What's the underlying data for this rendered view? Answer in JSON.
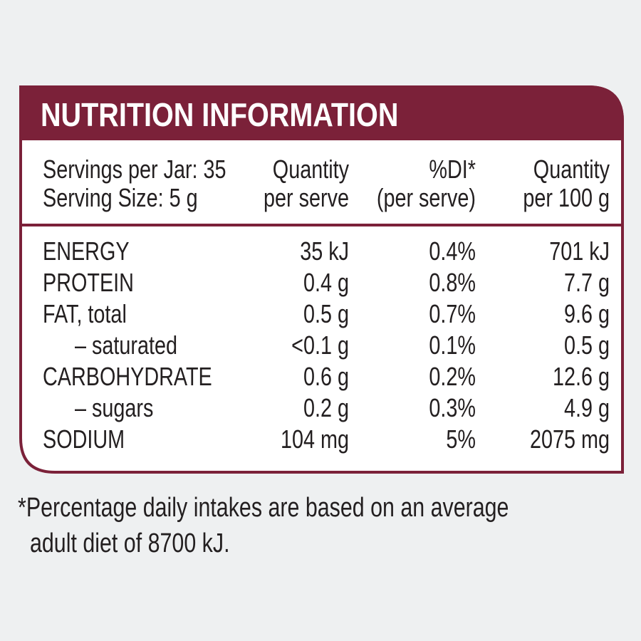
{
  "title": "NUTRITION INFORMATION",
  "header": {
    "servings": [
      "Servings per Jar: 35",
      "Serving Size: 5 g"
    ],
    "columns": [
      [
        "Quantity",
        "per serve"
      ],
      [
        "%DI*",
        "(per serve)"
      ],
      [
        "Quantity",
        "per 100 g"
      ]
    ]
  },
  "table": {
    "rows": [
      [
        "ENERGY",
        "35 kJ",
        "0.4%",
        "701 kJ"
      ],
      [
        "PROTEIN",
        "0.4 g",
        "0.8%",
        "7.7 g"
      ],
      [
        "FAT, total",
        "0.5 g",
        "0.7%",
        "9.6 g"
      ],
      [
        "– saturated",
        "<0.1 g",
        "0.1%",
        "0.5 g"
      ],
      [
        "CARBOHYDRATE",
        "0.6 g",
        "0.2%",
        "12.6 g"
      ],
      [
        "– sugars",
        "0.2 g",
        "0.3%",
        "4.9 g"
      ],
      [
        "SODIUM",
        "104 mg",
        "5%",
        "2075 mg"
      ]
    ]
  },
  "footnote": [
    "*Percentage daily intakes are based on an average",
    "adult diet of 8700 kJ."
  ]
}
